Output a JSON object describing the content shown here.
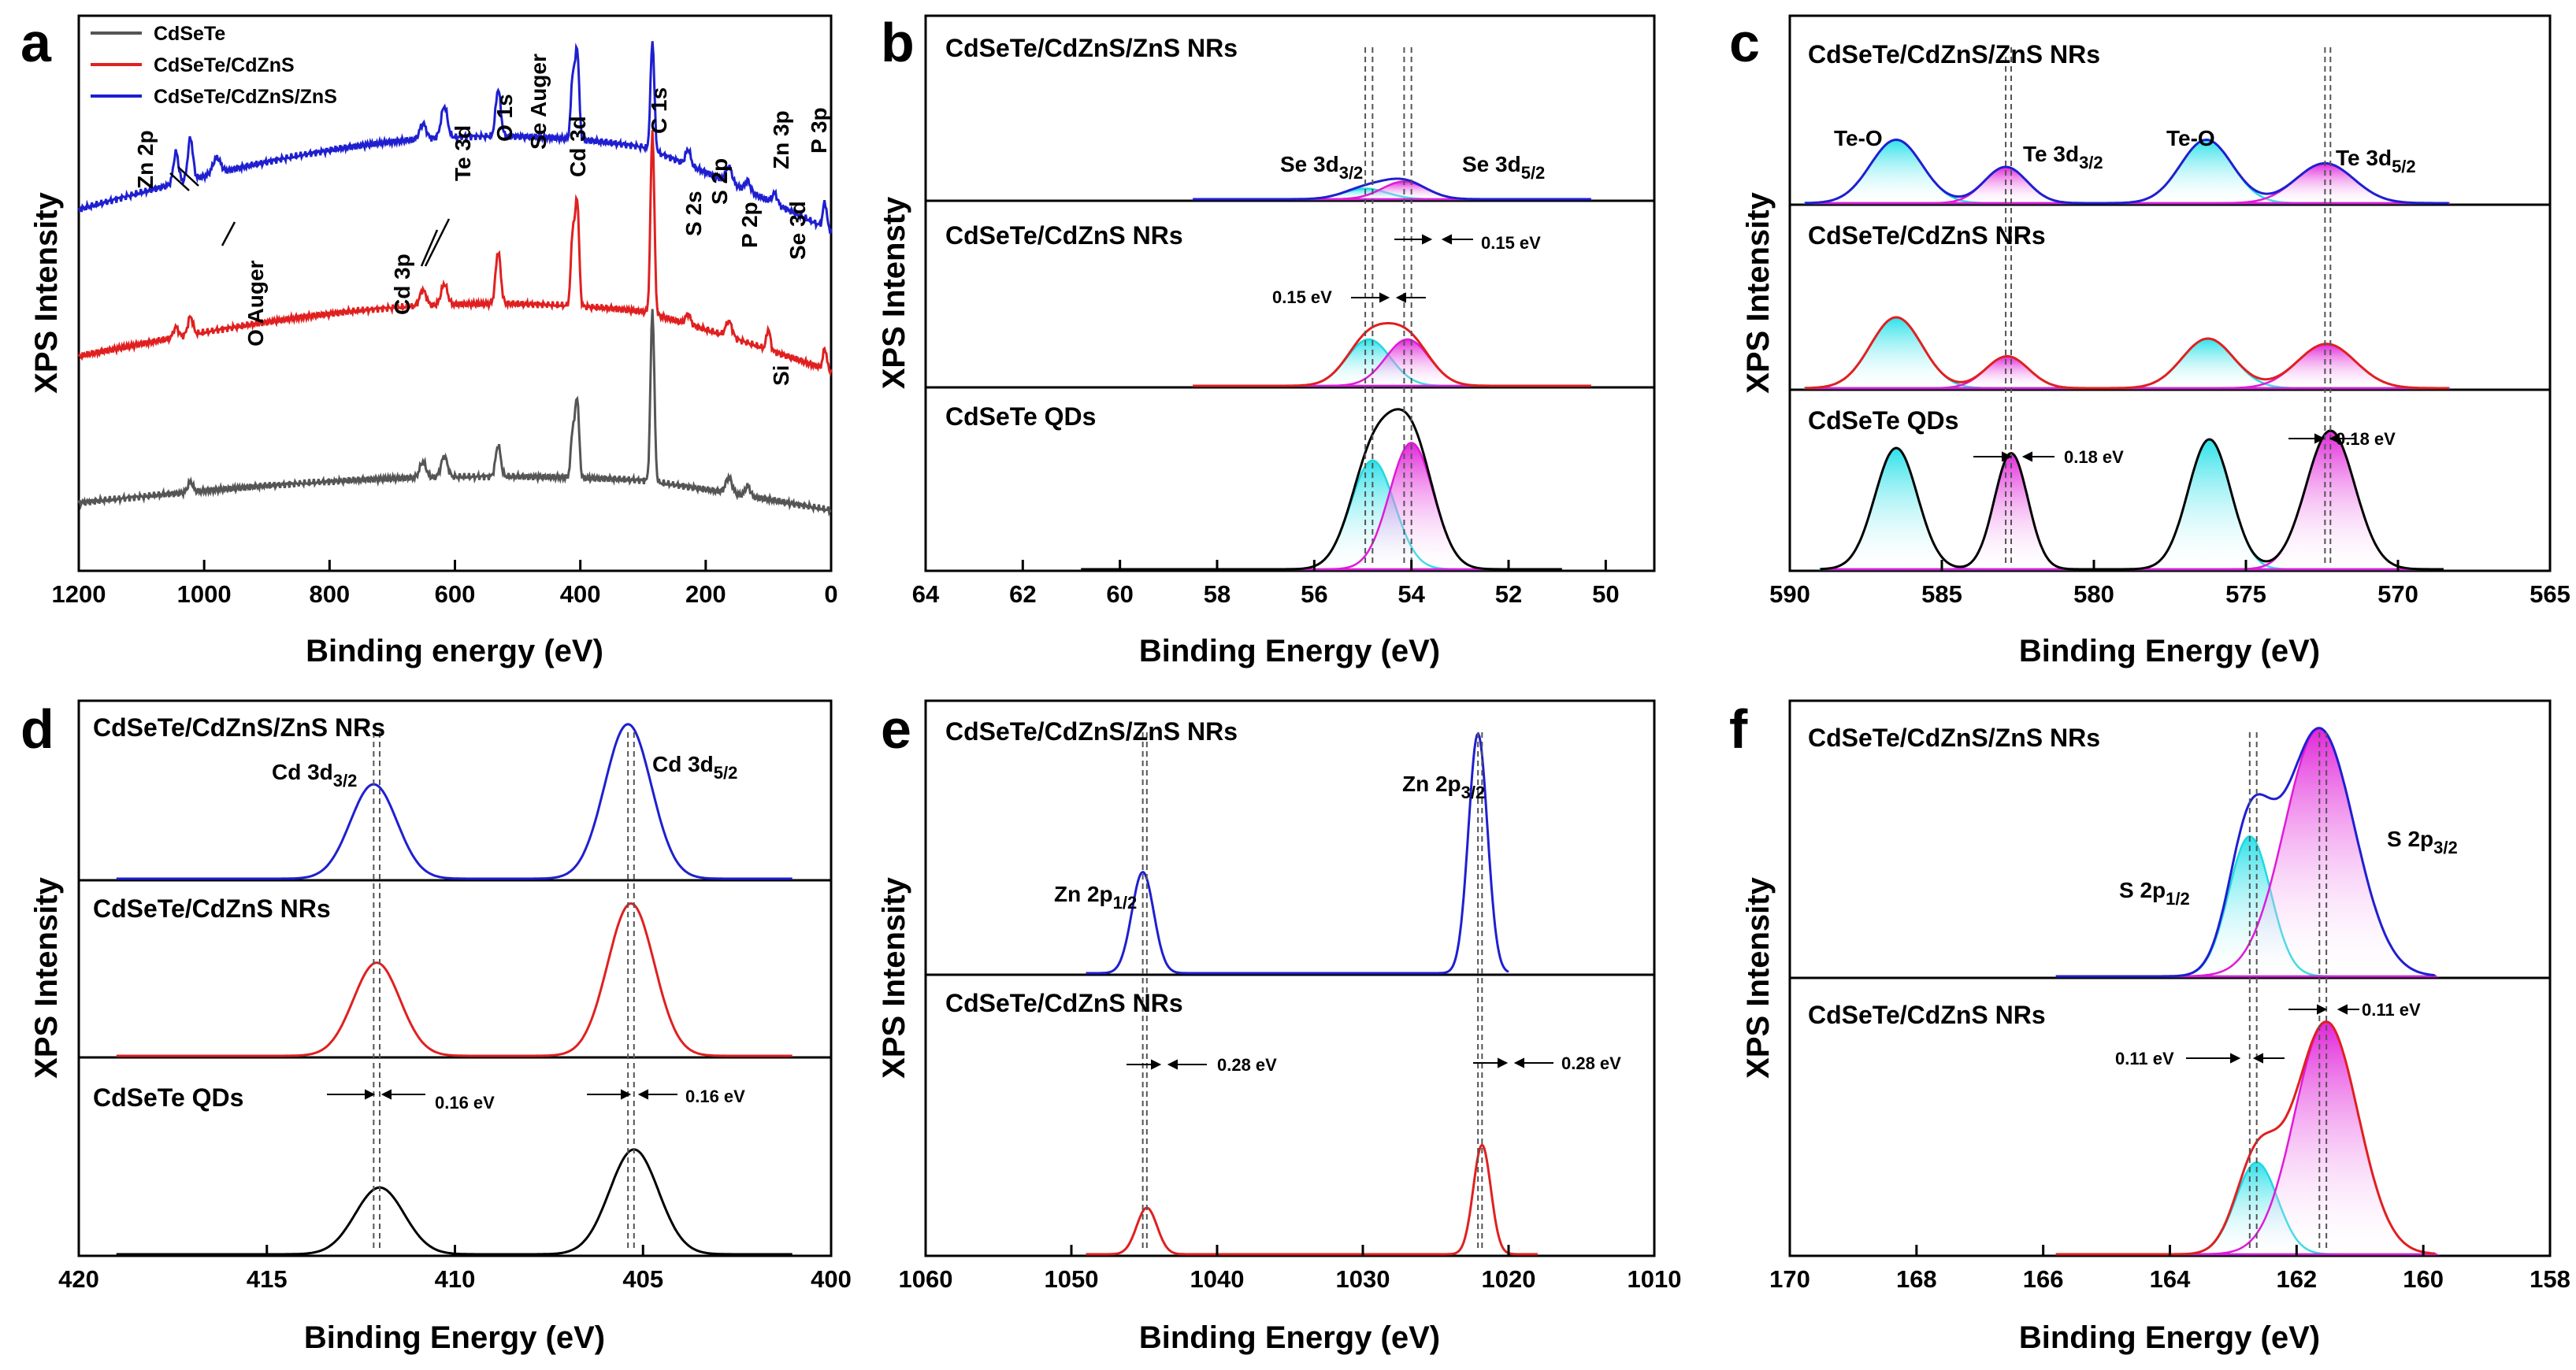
{
  "chart_data": [
    {
      "panel": "a",
      "type": "line",
      "xlabel": "Binding energy (eV)",
      "ylabel": "XPS Intensity",
      "xlim": [
        1200,
        0
      ],
      "xticks": [
        1200,
        1000,
        800,
        600,
        400,
        200,
        0
      ],
      "xticklabels": [
        "1200",
        "1000",
        "800",
        "600",
        "400",
        "200",
        "0"
      ],
      "legend": [
        {
          "label": "CdSeTe",
          "color": "#555555"
        },
        {
          "label": "CdSeTe/CdZnS",
          "color": "#e02020"
        },
        {
          "label": "CdSeTe/CdZnS/ZnS",
          "color": "#1f1fd0"
        }
      ],
      "peak_labels": [
        "Zn 2p",
        "O Auger",
        "Cd 3p",
        "Te 3d",
        "O 1s",
        "Se Auger",
        "Cd 3d",
        "C 1s",
        "S 2s",
        "S 2p",
        "P 2p",
        "Si",
        "Zn 3p",
        "Se 3d",
        "P 3p"
      ],
      "series": [
        {
          "name": "CdSeTe",
          "color": "#555555",
          "baseline": 0.1,
          "slope": 0.05,
          "peaks": [
            [
              1022,
              0.02,
              4
            ],
            [
              651,
              0.03,
              5
            ],
            [
              617,
              0.04,
              5
            ],
            [
              531,
              0.06,
              4
            ],
            [
              412,
              0.09,
              3
            ],
            [
              405,
              0.15,
              3
            ],
            [
              285,
              0.33,
              3
            ],
            [
              163,
              0.03,
              5
            ],
            [
              133,
              0.02,
              4
            ]
          ]
        },
        {
          "name": "CdSeTe/CdZnS",
          "color": "#e02020",
          "baseline": 0.38,
          "slope": 0.1,
          "peaks": [
            [
              1045,
              0.02,
              4
            ],
            [
              1022,
              0.035,
              4
            ],
            [
              651,
              0.03,
              5
            ],
            [
              617,
              0.04,
              5
            ],
            [
              531,
              0.1,
              4
            ],
            [
              412,
              0.14,
              3
            ],
            [
              405,
              0.2,
              3
            ],
            [
              285,
              0.35,
              3
            ],
            [
              228,
              0.02,
              4
            ],
            [
              163,
              0.03,
              5
            ],
            [
              100,
              0.04,
              3
            ],
            [
              10,
              0.04,
              3
            ]
          ]
        },
        {
          "name": "CdSeTe/CdZnS/ZnS",
          "color": "#1f1fd0",
          "baseline": 0.66,
          "slope": 0.14,
          "peaks": [
            [
              1045,
              0.06,
              4
            ],
            [
              1022,
              0.08,
              4
            ],
            [
              980,
              0.03,
              6
            ],
            [
              651,
              0.03,
              5
            ],
            [
              617,
              0.06,
              5
            ],
            [
              531,
              0.09,
              4
            ],
            [
              412,
              0.12,
              3
            ],
            [
              405,
              0.17,
              3
            ],
            [
              285,
              0.21,
              3
            ],
            [
              228,
              0.03,
              4
            ],
            [
              163,
              0.03,
              5
            ],
            [
              133,
              0.02,
              4
            ],
            [
              90,
              0.02,
              4
            ],
            [
              10,
              0.05,
              3
            ]
          ]
        }
      ]
    },
    {
      "panel": "b",
      "type": "line",
      "subtype": "stacked-xps-fit",
      "xlabel": "Binding Energy (eV)",
      "ylabel": "XPS Intensty",
      "xlim": [
        64,
        49
      ],
      "xticks": [
        64,
        62,
        60,
        58,
        56,
        54,
        52,
        50
      ],
      "xticklabels": [
        "64",
        "62",
        "60",
        "58",
        "56",
        "54",
        "52",
        "50"
      ],
      "samples": [
        "CdSeTe/CdZnS/ZnS NRs",
        "CdSeTe/CdZnS NRs",
        "CdSeTe QDs"
      ],
      "labels": {
        "se32": "Se 3d",
        "se32_sub": "3/2",
        "se52": "Se 3d",
        "se52_sub": "5/2",
        "shift1": "0.15 eV",
        "shift2": "0.15 eV"
      },
      "dashed_lines_eV": [
        54.95,
        54.8,
        54.15,
        54.0
      ],
      "stacks": [
        {
          "envelope_color": "#1f1fd0",
          "range": [
            58.5,
            50.3
          ],
          "components": [
            [
              54.95,
              0.06,
              0.45
            ],
            [
              54.15,
              0.1,
              0.45
            ]
          ]
        },
        {
          "envelope_color": "#e02020",
          "range": [
            58.5,
            50.3
          ],
          "components": [
            [
              54.88,
              0.26,
              0.45
            ],
            [
              54.08,
              0.26,
              0.45
            ]
          ]
        },
        {
          "envelope_color": "#000000",
          "range": [
            60.8,
            50.9
          ],
          "components": [
            [
              54.8,
              0.62,
              0.45
            ],
            [
              54.0,
              0.72,
              0.45
            ]
          ]
        }
      ]
    },
    {
      "panel": "c",
      "type": "line",
      "subtype": "stacked-xps-fit",
      "xlabel": "Binding Energy (eV)",
      "ylabel": "XPS Intensity",
      "xlim": [
        590,
        565
      ],
      "xticks": [
        590,
        585,
        580,
        575,
        570,
        565
      ],
      "xticklabels": [
        "590",
        "585",
        "580",
        "575",
        "570",
        "565"
      ],
      "samples": [
        "CdSeTe/CdZnS/ZnS NRs",
        "CdSeTe/CdZnS NRs",
        "CdSeTe QDs"
      ],
      "labels": {
        "teo1": "Te-O",
        "te32": "Te 3d",
        "te32_sub": "3/2",
        "teo2": "Te-O",
        "te52": "Te 3d",
        "te52_sub": "5/2",
        "shift1": "0.18 eV",
        "shift2": "0.18 eV"
      },
      "dashed_lines_eV": [
        582.9,
        582.72,
        572.4,
        572.22
      ],
      "stacks": [
        {
          "envelope_color": "#1f1fd0",
          "range": [
            589.5,
            568.3
          ],
          "components": [
            [
              586.5,
              0.35,
              0.85
            ],
            [
              582.9,
              0.2,
              0.7
            ],
            [
              576.3,
              0.35,
              0.85
            ],
            [
              572.4,
              0.22,
              0.95
            ]
          ]
        },
        {
          "envelope_color": "#e02020",
          "range": [
            589.5,
            568.3
          ],
          "components": [
            [
              586.5,
              0.4,
              0.85
            ],
            [
              582.85,
              0.18,
              0.7
            ],
            [
              576.25,
              0.28,
              0.85
            ],
            [
              572.35,
              0.25,
              0.95
            ]
          ]
        },
        {
          "envelope_color": "#000000",
          "range": [
            589.0,
            568.5
          ],
          "components": [
            [
              586.5,
              0.7,
              0.7
            ],
            [
              582.72,
              0.67,
              0.55
            ],
            [
              576.2,
              0.75,
              0.7
            ],
            [
              572.22,
              0.8,
              0.8
            ]
          ]
        }
      ]
    },
    {
      "panel": "d",
      "type": "line",
      "subtype": "stacked",
      "xlabel": "Binding Energy (eV)",
      "ylabel": "XPS Intensity",
      "xlim": [
        420,
        400
      ],
      "xticks": [
        420,
        415,
        410,
        405,
        400
      ],
      "xticklabels": [
        "420",
        "415",
        "410",
        "405",
        "400"
      ],
      "samples": [
        "CdSeTe/CdZnS/ZnS NRs",
        "CdSeTe/CdZnS NRs",
        "CdSeTe QDs"
      ],
      "labels": {
        "cd32": "Cd 3d",
        "cd32_sub": "3/2",
        "cd52": "Cd 3d",
        "cd52_sub": "5/2",
        "shift1": "0.16 eV",
        "shift2": "0.16 eV"
      },
      "dashed_lines_eV": [
        412.16,
        412.0,
        405.4,
        405.24
      ],
      "stacks": [
        {
          "color": "#1f1fd0",
          "range": [
            419,
            401
          ],
          "components": [
            [
              412.16,
              0.55,
              0.62
            ],
            [
              405.4,
              0.9,
              0.62
            ]
          ]
        },
        {
          "color": "#e02020",
          "range": [
            419,
            401
          ],
          "components": [
            [
              412.08,
              0.55,
              0.62
            ],
            [
              405.32,
              0.9,
              0.62
            ]
          ]
        },
        {
          "color": "#000000",
          "range": [
            419,
            401
          ],
          "components": [
            [
              412.0,
              0.35,
              0.65
            ],
            [
              405.24,
              0.55,
              0.65
            ]
          ]
        }
      ]
    },
    {
      "panel": "e",
      "type": "line",
      "subtype": "stacked",
      "xlabel": "Binding Energy (eV)",
      "ylabel": "XPS Intensity",
      "xlim": [
        1060,
        1010
      ],
      "xticks": [
        1060,
        1050,
        1040,
        1030,
        1020,
        1010
      ],
      "xticklabels": [
        "1060",
        "1050",
        "1040",
        "1030",
        "1020",
        "1010"
      ],
      "samples": [
        "CdSeTe/CdZnS/ZnS NRs",
        "CdSeTe/CdZnS NRs"
      ],
      "labels": {
        "zn12": "Zn 2p",
        "zn12_sub": "1/2",
        "zn32": "Zn 2p",
        "zn32_sub": "3/2",
        "shift1": "0.28 eV",
        "shift2": "0.28 eV"
      },
      "dashed_lines_eV": [
        1045.1,
        1044.82,
        1022.1,
        1021.82
      ],
      "stacks": [
        {
          "color": "#1f1fd0",
          "range": [
            1049,
            1020
          ],
          "components": [
            [
              1045.1,
              0.38,
              0.75
            ],
            [
              1022.1,
              0.9,
              0.65
            ]
          ]
        },
        {
          "color": "#e02020",
          "range": [
            1049,
            1018
          ],
          "components": [
            [
              1044.82,
              0.17,
              0.7
            ],
            [
              1021.82,
              0.4,
              0.6
            ]
          ]
        }
      ]
    },
    {
      "panel": "f",
      "type": "line",
      "subtype": "stacked-xps-fit",
      "xlabel": "Binding Energy (eV)",
      "ylabel": "XPS Intensity",
      "xlim": [
        170,
        158
      ],
      "xticks": [
        170,
        168,
        166,
        164,
        162,
        160,
        158
      ],
      "xticklabels": [
        "170",
        "168",
        "166",
        "164",
        "162",
        "160",
        "158"
      ],
      "samples": [
        "CdSeTe/CdZnS/ZnS NRs",
        "CdSeTe/CdZnS NRs"
      ],
      "labels": {
        "s12": "S 2p",
        "s12_sub": "1/2",
        "s32": "S 2p",
        "s32_sub": "3/2",
        "shift1": "0.11 eV",
        "shift2": "0.11 eV"
      },
      "dashed_lines_eV": [
        162.74,
        162.63,
        161.64,
        161.53
      ],
      "stacks": [
        {
          "envelope_color": "#1f1fd0",
          "range": [
            165.8,
            159.8
          ],
          "components": [
            [
              162.74,
              0.52,
              0.33
            ],
            [
              161.64,
              0.92,
              0.55
            ]
          ]
        },
        {
          "envelope_color": "#e02020",
          "range": [
            165.8,
            159.8
          ],
          "components": [
            [
              162.63,
              0.34,
              0.33
            ],
            [
              161.53,
              0.86,
              0.5
            ]
          ]
        }
      ]
    }
  ]
}
